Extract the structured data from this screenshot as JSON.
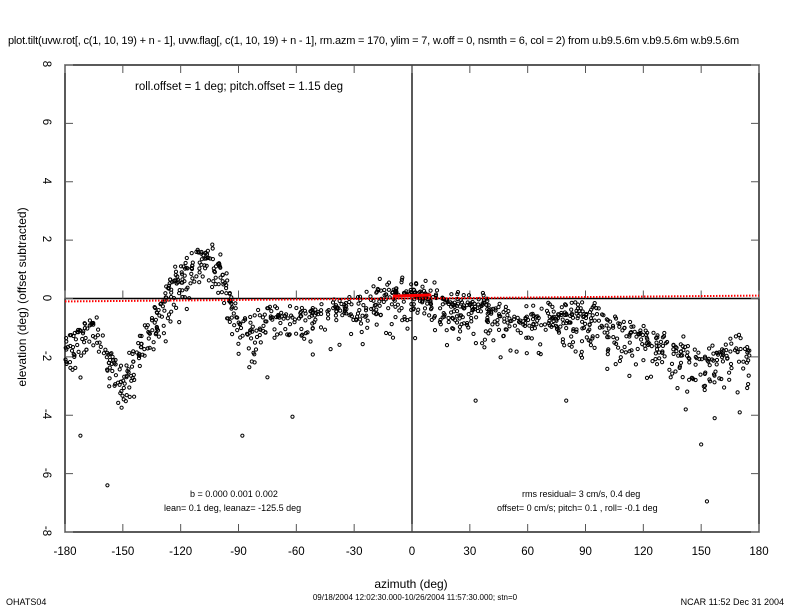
{
  "chart_data": {
    "type": "scatter",
    "title": "plot.tilt(uvw.rot[, c(1, 10, 19) + n - 1], uvw.flag[, c(1, 10, 19) + n - 1], rm.azm = 170, ylim = 7, w.off = 0, nsmth = 6, col = 2) from u.b9.5.6m v.b9.5.6m w.b9.5.6m",
    "xlabel": "azimuth (deg)",
    "ylabel": "elevation (deg)  (offset subtracted)",
    "xlim": [
      -180,
      180
    ],
    "ylim": [
      -8,
      8
    ],
    "xticks": [
      "-180",
      "-150",
      "-120",
      "-90",
      "-60",
      "-30",
      "0",
      "30",
      "60",
      "90",
      "120",
      "150",
      "180"
    ],
    "yticks": [
      "8",
      "6",
      "4",
      "2",
      "0",
      "-2",
      "-4",
      "-6",
      "-8"
    ],
    "annotation_top": "roll.offset = 1 deg; pitch.offset = 1.15 deg",
    "annotation_left": [
      "b = 0.000 0.001 0.002",
      "lean= 0.1 deg, leanaz= -125.5 deg"
    ],
    "annotation_right": [
      "rms residual= 3 cm/s, 0.4 deg",
      "offset= 0 cm/s; pitch=  0.1 , roll= -0.1 deg"
    ],
    "binned_mean": {
      "azimuth": [
        -180,
        -175,
        -170,
        -165,
        -160,
        -155,
        -150,
        -145,
        -140,
        -135,
        -130,
        -125,
        -120,
        -115,
        -110,
        -105,
        -100,
        -95,
        -90,
        -85,
        -80,
        -75,
        -70,
        -65,
        -60,
        -55,
        -50,
        -45,
        -40,
        -35,
        -30,
        -25,
        -20,
        -15,
        -10,
        -5,
        0,
        5,
        10,
        15,
        20,
        25,
        30,
        35,
        40,
        45,
        50,
        55,
        60,
        65,
        70,
        75,
        80,
        85,
        90,
        95,
        100,
        105,
        110,
        115,
        120,
        125,
        130,
        135,
        140,
        145,
        150,
        155,
        160,
        165,
        170,
        175
      ],
      "elevation": [
        -1.8,
        -1.5,
        -1.2,
        -0.9,
        -1.5,
        -2.6,
        -3.0,
        -2.3,
        -1.6,
        -1.0,
        -0.3,
        0.3,
        0.6,
        1.0,
        1.3,
        1.4,
        1.0,
        0.0,
        -0.9,
        -1.1,
        -1.0,
        -0.9,
        -0.8,
        -0.8,
        -0.8,
        -0.7,
        -0.6,
        -0.5,
        -0.5,
        -0.4,
        -0.3,
        -0.2,
        -0.1,
        0.0,
        0.1,
        0.2,
        0.1,
        0.0,
        -0.1,
        -0.2,
        -0.3,
        -0.3,
        -0.4,
        -0.4,
        -0.5,
        -0.6,
        -0.8,
        -0.9,
        -0.9,
        -0.9,
        -0.8,
        -0.7,
        -0.6,
        -0.6,
        -0.7,
        -0.8,
        -0.9,
        -1.0,
        -1.2,
        -1.3,
        -1.4,
        -1.5,
        -1.6,
        -1.8,
        -1.9,
        -2.1,
        -2.2,
        -2.1,
        -1.9,
        -1.9,
        -1.9,
        -2.1
      ],
      "spread": 0.45
    },
    "outliers": [
      [
        -172,
        -4.7
      ],
      [
        -158,
        -6.4
      ],
      [
        -88,
        -4.7
      ],
      [
        -62,
        -4.05
      ],
      [
        -75,
        -2.7
      ],
      [
        33,
        -3.5
      ],
      [
        80,
        -3.5
      ],
      [
        150,
        -5.0
      ],
      [
        153,
        -6.95
      ],
      [
        142,
        -3.8
      ],
      [
        170,
        -3.9
      ],
      [
        157,
        -4.1
      ]
    ],
    "fit_line_dotted": {
      "x": [
        -180,
        180
      ],
      "y": [
        -0.1,
        0.1
      ],
      "color": "#ff0000"
    },
    "fit_line_solid": {
      "x": [
        -10,
        10
      ],
      "y": [
        0.08,
        0.12
      ],
      "color": "#ff0000"
    }
  },
  "footer": {
    "left": "OHATS04",
    "middle": "09/18/2004 12:02:30.000-10/26/2004 11:57:30.000; stn=0",
    "right": "NCAR 11:52 Dec 31 2004"
  }
}
